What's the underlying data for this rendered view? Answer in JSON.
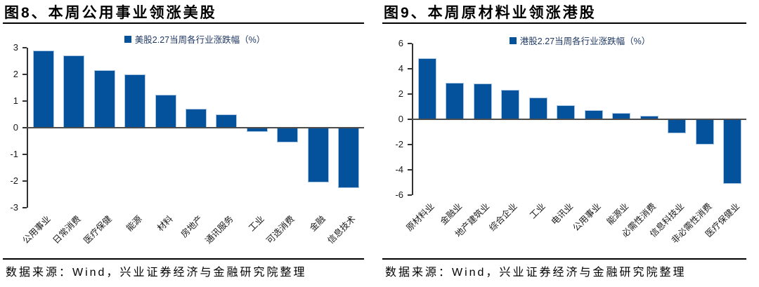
{
  "colors": {
    "bar": "#04519C",
    "bar_border": "#A9C6E3",
    "legend_text": "#1F3864",
    "axis_line": "#333333",
    "zero_line": "#4D4D4D"
  },
  "chart_data": [
    {
      "type": "bar",
      "title": "图8、本周公用事业领涨美股",
      "legend": "美股2.27当周各行业涨跌幅（%）",
      "source": "数据来源：Wind，兴业证券经济与金融研究院整理",
      "categories": [
        "公用事业",
        "日常消费",
        "医疗保健",
        "能源",
        "材料",
        "房地产",
        "通讯服务",
        "工业",
        "可选消费",
        "金融",
        "信息技术"
      ],
      "values": [
        2.9,
        2.7,
        2.15,
        2.0,
        1.25,
        0.7,
        0.5,
        -0.1,
        -0.5,
        -2.0,
        -2.2
      ],
      "ylabel": "",
      "xlabel": "",
      "ylim": [
        -3,
        3
      ],
      "ytick_step": 1,
      "grid": false,
      "legend_position": "top"
    },
    {
      "type": "bar",
      "title": "图9、本周原材料业领涨港股",
      "legend": "港股2.27当周各行业涨跌幅（%）",
      "source": "数据来源：Wind，兴业证券经济与金融研究院整理",
      "categories": [
        "原材料业",
        "金融业",
        "地产建筑业",
        "综合企业",
        "工业",
        "电讯业",
        "公用事业",
        "能源业",
        "必需性消费",
        "信息科技业",
        "非必需性消费",
        "医疗保健业"
      ],
      "values": [
        4.8,
        2.9,
        2.8,
        2.3,
        1.7,
        1.1,
        0.7,
        0.5,
        0.3,
        -1.0,
        -1.9,
        -5.0
      ],
      "ylabel": "",
      "xlabel": "",
      "ylim": [
        -6,
        6
      ],
      "ytick_step": 2,
      "grid": false,
      "legend_position": "top"
    }
  ]
}
